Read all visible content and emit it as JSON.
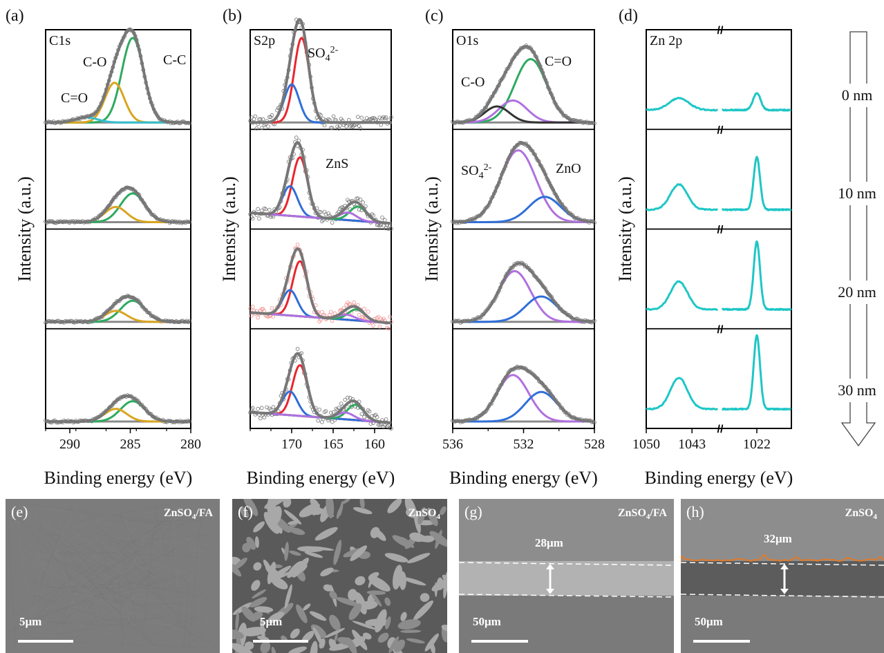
{
  "colors": {
    "envelope": "#777777",
    "baseline": "#8a8a8a",
    "cc": "#2daa5f",
    "co": "#d9a520",
    "cdo": "#33bfcf",
    "so4": "#e8262e",
    "so4b": "#2f6fd8",
    "zns": "#b06fe0",
    "znsb": "#2daa5f",
    "o_so4": "#b070e0",
    "o_zno": "#2f6fd8",
    "o_co": "#333333",
    "zn": "#1ec6c6",
    "scatter": "#6f6f6f",
    "scatter_red": "#f08a8a"
  },
  "figure": {
    "xlabel": "Binding energy (eV)",
    "ylabel": "Intensity (a.u.)",
    "depth_labels": [
      "0 nm",
      "10 nm",
      "20 nm",
      "30 nm"
    ]
  },
  "chart_data": [
    {
      "id": "a",
      "letter": "(a)",
      "type": "line",
      "panel_title": "C1s",
      "xlabel": "Binding energy (eV)",
      "ylabel": "Intensity (a.u.)",
      "xlim": [
        292,
        280
      ],
      "xticks": [
        290,
        285,
        280
      ],
      "rows": [
        {
          "depth": "0 nm",
          "peaks": [
            {
              "name": "C-C",
              "center": 284.8,
              "amp": 1.0,
              "width": 0.9,
              "color": "cc"
            },
            {
              "name": "C-O",
              "center": 286.3,
              "amp": 0.47,
              "width": 0.8,
              "color": "co"
            },
            {
              "name": "C=O",
              "center": 288.6,
              "amp": 0.06,
              "width": 0.9,
              "color": "cdo"
            }
          ],
          "labels": [
            "C-C",
            "C-O",
            "C=O"
          ]
        },
        {
          "depth": "10 nm",
          "peaks": [
            {
              "name": "C-C",
              "center": 284.8,
              "amp": 0.34,
              "width": 1.0,
              "color": "cc"
            },
            {
              "name": "C-O",
              "center": 286.2,
              "amp": 0.18,
              "width": 0.9,
              "color": "co"
            }
          ],
          "labels": []
        },
        {
          "depth": "20 nm",
          "peaks": [
            {
              "name": "C-C",
              "center": 284.8,
              "amp": 0.25,
              "width": 1.0,
              "color": "cc"
            },
            {
              "name": "C-O",
              "center": 286.2,
              "amp": 0.13,
              "width": 0.9,
              "color": "co"
            }
          ],
          "labels": []
        },
        {
          "depth": "30 nm",
          "peaks": [
            {
              "name": "C-C",
              "center": 284.8,
              "amp": 0.24,
              "width": 1.0,
              "color": "cc"
            },
            {
              "name": "C-O",
              "center": 286.2,
              "amp": 0.15,
              "width": 0.9,
              "color": "co"
            }
          ],
          "labels": []
        }
      ]
    },
    {
      "id": "b",
      "letter": "(b)",
      "type": "line",
      "panel_title": "S2p",
      "xlabel": "Binding energy (eV)",
      "ylabel": "Intensity (a.u.)",
      "xlim": [
        175,
        158
      ],
      "xticks": [
        170,
        165,
        160
      ],
      "rows": [
        {
          "depth": "0 nm",
          "peaks": [
            {
              "name": "SO4 2p3/2",
              "center": 168.8,
              "amp": 1.0,
              "width": 0.9,
              "color": "so4"
            },
            {
              "name": "SO4 2p1/2",
              "center": 170.0,
              "amp": 0.45,
              "width": 0.9,
              "color": "so4b"
            }
          ],
          "labels": [
            "SO42-"
          ]
        },
        {
          "depth": "10 nm",
          "peaks": [
            {
              "name": "SO4 2p3/2",
              "center": 169.0,
              "amp": 0.7,
              "width": 0.9,
              "color": "so4"
            },
            {
              "name": "SO4 2p1/2",
              "center": 170.2,
              "amp": 0.35,
              "width": 0.9,
              "color": "so4b"
            },
            {
              "name": "ZnS 2p3/2",
              "center": 162.0,
              "amp": 0.17,
              "width": 1.0,
              "color": "znsb"
            },
            {
              "name": "ZnS 2p1/2",
              "center": 163.2,
              "amp": 0.09,
              "width": 1.0,
              "color": "zns"
            }
          ],
          "labels": [
            "ZnS"
          ]
        },
        {
          "depth": "20 nm",
          "peaks": [
            {
              "name": "SO4 2p3/2",
              "center": 169.0,
              "amp": 0.65,
              "width": 0.9,
              "color": "so4"
            },
            {
              "name": "SO4 2p1/2",
              "center": 170.2,
              "amp": 0.3,
              "width": 0.9,
              "color": "so4b"
            },
            {
              "name": "ZnS 2p3/2",
              "center": 162.2,
              "amp": 0.13,
              "width": 1.0,
              "color": "znsb"
            },
            {
              "name": "ZnS 2p1/2",
              "center": 163.4,
              "amp": 0.06,
              "width": 1.0,
              "color": "zns"
            }
          ],
          "labels": []
        },
        {
          "depth": "30 nm",
          "peaks": [
            {
              "name": "SO4 2p3/2",
              "center": 169.0,
              "amp": 0.6,
              "width": 0.9,
              "color": "so4"
            },
            {
              "name": "SO4 2p1/2",
              "center": 170.2,
              "amp": 0.28,
              "width": 0.9,
              "color": "so4b"
            },
            {
              "name": "ZnS 2p3/2",
              "center": 162.3,
              "amp": 0.18,
              "width": 1.0,
              "color": "znsb"
            },
            {
              "name": "ZnS 2p1/2",
              "center": 163.5,
              "amp": 0.08,
              "width": 1.0,
              "color": "zns"
            }
          ],
          "labels": []
        }
      ]
    },
    {
      "id": "c",
      "letter": "(c)",
      "type": "line",
      "panel_title": "O1s",
      "xlabel": "Binding energy (eV)",
      "ylabel": "Intensity (a.u.)",
      "xlim": [
        536,
        528
      ],
      "xticks": [
        536,
        532,
        528
      ],
      "rows": [
        {
          "depth": "0 nm",
          "peaks": [
            {
              "name": "C=O",
              "center": 531.6,
              "amp": 0.75,
              "width": 0.9,
              "color": "cc"
            },
            {
              "name": "SO42-",
              "center": 532.6,
              "amp": 0.26,
              "width": 0.8,
              "color": "o_so4"
            },
            {
              "name": "C-O",
              "center": 533.5,
              "amp": 0.19,
              "width": 0.7,
              "color": "o_co"
            }
          ],
          "labels": [
            "C=O",
            "C-O"
          ]
        },
        {
          "depth": "10 nm",
          "peaks": [
            {
              "name": "SO42-",
              "center": 532.3,
              "amp": 0.85,
              "width": 1.0,
              "color": "o_so4"
            },
            {
              "name": "ZnO",
              "center": 530.8,
              "amp": 0.3,
              "width": 0.9,
              "color": "o_zno"
            }
          ],
          "labels": [
            "SO42-",
            "ZnO"
          ]
        },
        {
          "depth": "20 nm",
          "peaks": [
            {
              "name": "SO42-",
              "center": 532.5,
              "amp": 0.6,
              "width": 0.9,
              "color": "o_so4"
            },
            {
              "name": "ZnO",
              "center": 531.0,
              "amp": 0.3,
              "width": 0.9,
              "color": "o_zno"
            }
          ],
          "labels": []
        },
        {
          "depth": "30 nm",
          "peaks": [
            {
              "name": "SO42-",
              "center": 532.6,
              "amp": 0.55,
              "width": 0.9,
              "color": "o_so4"
            },
            {
              "name": "ZnO",
              "center": 531.0,
              "amp": 0.35,
              "width": 0.9,
              "color": "o_zno"
            }
          ],
          "labels": []
        }
      ]
    },
    {
      "id": "d",
      "letter": "(d)",
      "type": "line",
      "panel_title": "Zn 2p",
      "xlabel": "Binding energy (eV)",
      "ylabel": "Intensity (a.u.)",
      "xticks": [
        "1050",
        "1043",
        "1022"
      ],
      "axis_break": true,
      "segments": [
        [
          1050,
          1039
        ],
        [
          1034,
          1010
        ]
      ],
      "rows": [
        {
          "depth": "0 nm",
          "peaks": [
            {
              "name": "Zn 2p1/2",
              "center": 1045,
              "amp": 0.14,
              "width": 1.5
            },
            {
              "name": "Zn 2p3/2",
              "center": 1022,
              "amp": 0.2,
              "width": 1.3
            }
          ]
        },
        {
          "depth": "10 nm",
          "peaks": [
            {
              "name": "Zn 2p1/2",
              "center": 1045,
              "amp": 0.3,
              "width": 1.3
            },
            {
              "name": "Zn 2p3/2",
              "center": 1022,
              "amp": 0.62,
              "width": 1.1
            }
          ]
        },
        {
          "depth": "20 nm",
          "peaks": [
            {
              "name": "Zn 2p1/2",
              "center": 1045,
              "amp": 0.33,
              "width": 1.3
            },
            {
              "name": "Zn 2p3/2",
              "center": 1022,
              "amp": 0.8,
              "width": 1.1
            }
          ]
        },
        {
          "depth": "30 nm",
          "peaks": [
            {
              "name": "Zn 2p1/2",
              "center": 1045,
              "amp": 0.37,
              "width": 1.3
            },
            {
              "name": "Zn 2p3/2",
              "center": 1022,
              "amp": 0.87,
              "width": 1.1
            }
          ]
        }
      ]
    }
  ],
  "sem_panels": [
    {
      "letter": "(e)",
      "title": "ZnSO4/FA",
      "scale": "5μm",
      "kind": "smooth"
    },
    {
      "letter": "(f)",
      "title": "ZnSO4",
      "scale": "5μm",
      "kind": "flakes"
    },
    {
      "letter": "(g)",
      "title": "ZnSO4/FA",
      "scale": "50μm",
      "thickness": "28μm",
      "kind": "cross"
    },
    {
      "letter": "(h)",
      "title": "ZnSO4",
      "scale": "50μm",
      "thickness": "32μm",
      "kind": "cross-rough"
    }
  ]
}
